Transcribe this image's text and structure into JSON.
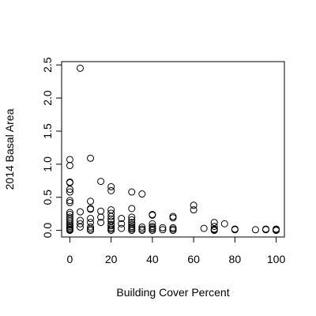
{
  "chart_data": {
    "type": "scatter",
    "title": "",
    "xlabel": "Building Cover Percent",
    "ylabel": "2014 Basal Area",
    "xlim": [
      -4,
      104
    ],
    "ylim": [
      -0.1,
      2.55
    ],
    "x_ticks": [
      0,
      20,
      40,
      60,
      80,
      100
    ],
    "y_ticks": [
      0.0,
      0.5,
      1.0,
      1.5,
      2.0,
      2.5
    ],
    "x_tick_labels": [
      "0",
      "20",
      "40",
      "60",
      "80",
      "100"
    ],
    "y_tick_labels": [
      "0.0",
      "0.5",
      "1.0",
      "1.5",
      "2.0",
      "2.5"
    ],
    "grid": false,
    "legend": "none",
    "marker": "open-circle",
    "points": [
      [
        0,
        1.07
      ],
      [
        0,
        0.98
      ],
      [
        0,
        0.73
      ],
      [
        0,
        0.72
      ],
      [
        0,
        0.62
      ],
      [
        0,
        0.58
      ],
      [
        0,
        0.45
      ],
      [
        0,
        0.42
      ],
      [
        0,
        0.27
      ],
      [
        0,
        0.24
      ],
      [
        0,
        0.2
      ],
      [
        0,
        0.17
      ],
      [
        0,
        0.14
      ],
      [
        0,
        0.11
      ],
      [
        0,
        0.08
      ],
      [
        0,
        0.06
      ],
      [
        0,
        0.04
      ],
      [
        0,
        0.02
      ],
      [
        0,
        0.01
      ],
      [
        0,
        0.0
      ],
      [
        5,
        2.45
      ],
      [
        5,
        0.28
      ],
      [
        5,
        0.15
      ],
      [
        5,
        0.1
      ],
      [
        5,
        0.05
      ],
      [
        10,
        1.09
      ],
      [
        10,
        0.44
      ],
      [
        10,
        0.33
      ],
      [
        10,
        0.32
      ],
      [
        10,
        0.18
      ],
      [
        10,
        0.12
      ],
      [
        10,
        0.05
      ],
      [
        10,
        0.02
      ],
      [
        10,
        0.0
      ],
      [
        15,
        0.74
      ],
      [
        15,
        0.29
      ],
      [
        15,
        0.2
      ],
      [
        15,
        0.12
      ],
      [
        20,
        0.66
      ],
      [
        20,
        0.6
      ],
      [
        20,
        0.31
      ],
      [
        20,
        0.26
      ],
      [
        20,
        0.21
      ],
      [
        20,
        0.17
      ],
      [
        20,
        0.14
      ],
      [
        20,
        0.09
      ],
      [
        20,
        0.07
      ],
      [
        20,
        0.04
      ],
      [
        20,
        0.02
      ],
      [
        20,
        0.0
      ],
      [
        25,
        0.18
      ],
      [
        25,
        0.1
      ],
      [
        25,
        0.03
      ],
      [
        30,
        0.58
      ],
      [
        30,
        0.33
      ],
      [
        30,
        0.2
      ],
      [
        30,
        0.16
      ],
      [
        30,
        0.12
      ],
      [
        30,
        0.09
      ],
      [
        30,
        0.06
      ],
      [
        30,
        0.04
      ],
      [
        30,
        0.02
      ],
      [
        30,
        0.0
      ],
      [
        35,
        0.55
      ],
      [
        35,
        0.05
      ],
      [
        35,
        0.02
      ],
      [
        35,
        0.0
      ],
      [
        40,
        0.24
      ],
      [
        40,
        0.23
      ],
      [
        40,
        0.1
      ],
      [
        40,
        0.06
      ],
      [
        40,
        0.04
      ],
      [
        40,
        0.02
      ],
      [
        40,
        0.0
      ],
      [
        45,
        0.04
      ],
      [
        45,
        0.01
      ],
      [
        50,
        0.21
      ],
      [
        50,
        0.19
      ],
      [
        50,
        0.04
      ],
      [
        50,
        0.02
      ],
      [
        50,
        0.0
      ],
      [
        60,
        0.38
      ],
      [
        60,
        0.31
      ],
      [
        65,
        0.03
      ],
      [
        70,
        0.12
      ],
      [
        70,
        0.06
      ],
      [
        70,
        0.02
      ],
      [
        70,
        0.01
      ],
      [
        70,
        0.0
      ],
      [
        75,
        0.1
      ],
      [
        80,
        0.02
      ],
      [
        80,
        0.01
      ],
      [
        90,
        0.01
      ],
      [
        95,
        0.02
      ],
      [
        95,
        0.01
      ],
      [
        100,
        0.02
      ],
      [
        100,
        0.01
      ],
      [
        100,
        0.0
      ]
    ]
  }
}
